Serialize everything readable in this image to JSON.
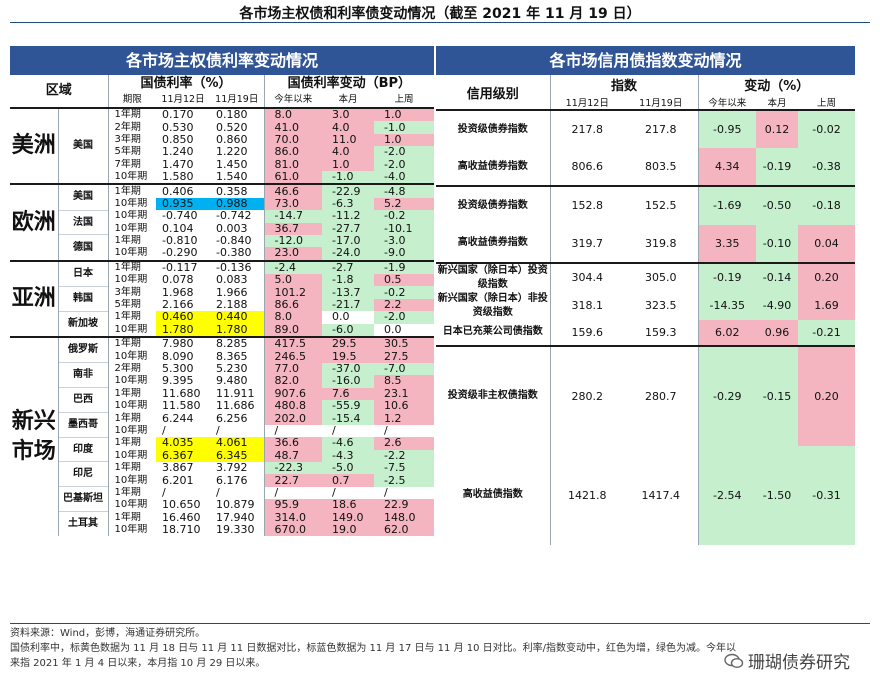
{
  "title": "各市场主权债和利率债变动情况（截至 2021 年 11 月 19 日）",
  "left": {
    "banner": "各市场主权债利率变动情况",
    "h_region": "区域",
    "h_yield": "国债利率（%）",
    "h_change": "国债利率变动（BP）",
    "h_period": "期限",
    "h_d1": "11月12日",
    "h_d2": "11月19日",
    "h_ytd": "今年以来",
    "h_mtd": "本月",
    "h_wtd": "上周",
    "rows": [
      {
        "p": "1年期",
        "a": "0.170",
        "b": "0.180",
        "y": "8.0",
        "m": "3.0",
        "w": "1.0"
      },
      {
        "p": "2年期",
        "a": "0.530",
        "b": "0.520",
        "y": "41.0",
        "m": "4.0",
        "w": "-1.0"
      },
      {
        "p": "3年期",
        "a": "0.850",
        "b": "0.860",
        "y": "70.0",
        "m": "11.0",
        "w": "1.0"
      },
      {
        "p": "5年期",
        "a": "1.240",
        "b": "1.220",
        "y": "86.0",
        "m": "4.0",
        "w": "-2.0"
      },
      {
        "p": "7年期",
        "a": "1.470",
        "b": "1.450",
        "y": "81.0",
        "m": "1.0",
        "w": "-2.0"
      },
      {
        "p": "10年期",
        "a": "1.580",
        "b": "1.540",
        "y": "61.0",
        "m": "-1.0",
        "w": "-4.0"
      },
      {
        "p": "1年期",
        "a": "0.406",
        "b": "0.358",
        "y": "46.6",
        "m": "-22.9",
        "w": "-4.8"
      },
      {
        "p": "10年期",
        "a": "0.935",
        "b": "0.988",
        "y": "73.0",
        "m": "-6.3",
        "w": "5.2"
      },
      {
        "p": "10年期",
        "a": "-0.740",
        "b": "-0.742",
        "y": "-14.7",
        "m": "-11.2",
        "w": "-0.2"
      },
      {
        "p": "10年期",
        "a": "0.104",
        "b": "0.003",
        "y": "36.7",
        "m": "-27.7",
        "w": "-10.1"
      },
      {
        "p": "1年期",
        "a": "-0.810",
        "b": "-0.840",
        "y": "-12.0",
        "m": "-17.0",
        "w": "-3.0"
      },
      {
        "p": "10年期",
        "a": "-0.290",
        "b": "-0.380",
        "y": "23.0",
        "m": "-24.0",
        "w": "-9.0"
      },
      {
        "p": "1年期",
        "a": "-0.117",
        "b": "-0.136",
        "y": "-2.4",
        "m": "-2.7",
        "w": "-1.9"
      },
      {
        "p": "10年期",
        "a": "0.078",
        "b": "0.083",
        "y": "5.0",
        "m": "-1.8",
        "w": "0.5"
      },
      {
        "p": "3年期",
        "a": "1.968",
        "b": "1.966",
        "y": "101.2",
        "m": "-13.7",
        "w": "-0.2"
      },
      {
        "p": "5年期",
        "a": "2.166",
        "b": "2.188",
        "y": "86.6",
        "m": "-21.7",
        "w": "2.2"
      },
      {
        "p": "1年期",
        "a": "0.460",
        "b": "0.440",
        "y": "8.0",
        "m": "0.0",
        "w": "-2.0"
      },
      {
        "p": "10年期",
        "a": "1.780",
        "b": "1.780",
        "y": "89.0",
        "m": "-6.0",
        "w": "0.0"
      },
      {
        "p": "1年期",
        "a": "7.980",
        "b": "8.285",
        "y": "417.5",
        "m": "29.5",
        "w": "30.5"
      },
      {
        "p": "10年期",
        "a": "8.090",
        "b": "8.365",
        "y": "246.5",
        "m": "19.5",
        "w": "27.5"
      },
      {
        "p": "2年期",
        "a": "5.300",
        "b": "5.230",
        "y": "77.0",
        "m": "-37.0",
        "w": "-7.0"
      },
      {
        "p": "10年期",
        "a": "9.395",
        "b": "9.480",
        "y": "82.0",
        "m": "-16.0",
        "w": "8.5"
      },
      {
        "p": "1年期",
        "a": "11.680",
        "b": "11.911",
        "y": "907.6",
        "m": "7.6",
        "w": "23.1"
      },
      {
        "p": "10年期",
        "a": "11.580",
        "b": "11.686",
        "y": "480.8",
        "m": "-55.9",
        "w": "10.6"
      },
      {
        "p": "1年期",
        "a": "6.244",
        "b": "6.256",
        "y": "202.0",
        "m": "-15.4",
        "w": "1.2"
      },
      {
        "p": "10年期",
        "a": "/",
        "b": "/",
        "y": "/",
        "m": "/",
        "w": "/"
      },
      {
        "p": "1年期",
        "a": "4.035",
        "b": "4.061",
        "y": "36.6",
        "m": "-4.6",
        "w": "2.6"
      },
      {
        "p": "10年期",
        "a": "6.367",
        "b": "6.345",
        "y": "48.7",
        "m": "-4.3",
        "w": "-2.2"
      },
      {
        "p": "1年期",
        "a": "3.867",
        "b": "3.792",
        "y": "-22.3",
        "m": "-5.0",
        "w": "-7.5"
      },
      {
        "p": "10年期",
        "a": "6.201",
        "b": "6.176",
        "y": "22.7",
        "m": "0.7",
        "w": "-2.5"
      },
      {
        "p": "1年期",
        "a": "/",
        "b": "/",
        "y": "/",
        "m": "/",
        "w": "/"
      },
      {
        "p": "10年期",
        "a": "10.650",
        "b": "10.879",
        "y": "95.9",
        "m": "18.6",
        "w": "22.9"
      },
      {
        "p": "1年期",
        "a": "16.460",
        "b": "17.940",
        "y": "314.0",
        "m": "149.0",
        "w": "148.0"
      },
      {
        "p": "10年期",
        "a": "18.710",
        "b": "19.330",
        "y": "670.0",
        "m": "19.0",
        "w": "62.0"
      }
    ],
    "regions": {
      "us": "美洲",
      "eu": "欧洲",
      "asia": "亚洲",
      "em": "新兴市场"
    },
    "countries": {
      "us": "美国",
      "eu_us": "美国",
      "fr": "法国",
      "de": "德国",
      "jp": "日本",
      "kr": "韩国",
      "sg": "新加坡",
      "ru": "俄罗斯",
      "za": "南非",
      "br": "巴西",
      "mx": "墨西哥",
      "in": "印度",
      "id": "印尼",
      "pk": "巴基斯坦",
      "tr": "土耳其"
    }
  },
  "right": {
    "banner": "各市场信用债指数变动情况",
    "h_rating": "信用级别",
    "h_index": "指数",
    "h_change": "变动（%）",
    "h_d1": "11月12日",
    "h_d2": "11月19日",
    "h_ytd": "今年以来",
    "h_mtd": "本月",
    "h_wtd": "上周",
    "rows": [
      {
        "r": "投资级债券指数",
        "a": "217.8",
        "b": "217.8",
        "y": "-0.95",
        "m": "0.12",
        "w": "-0.02"
      },
      {
        "r": "高收益债券指数",
        "a": "806.6",
        "b": "803.5",
        "y": "4.34",
        "m": "-0.19",
        "w": "-0.38"
      },
      {
        "r": "投资级债券指数",
        "a": "152.8",
        "b": "152.5",
        "y": "-1.69",
        "m": "-0.50",
        "w": "-0.18"
      },
      {
        "r": "高收益债券指数",
        "a": "319.7",
        "b": "319.8",
        "y": "3.35",
        "m": "-0.10",
        "w": "0.04"
      },
      {
        "r": "新兴国家（除日本）投资级指数",
        "a": "304.4",
        "b": "305.0",
        "y": "-0.19",
        "m": "-0.14",
        "w": "0.20"
      },
      {
        "r": "新兴国家（除日本）非投资级指数",
        "a": "318.1",
        "b": "323.5",
        "y": "-14.35",
        "m": "-4.90",
        "w": "1.69"
      },
      {
        "r": "日本已充莱公司债指数",
        "a": "159.6",
        "b": "159.3",
        "y": "6.02",
        "m": "0.96",
        "w": "-0.21"
      },
      {
        "r": "投资级非主权债指数",
        "a": "280.2",
        "b": "280.7",
        "y": "-0.29",
        "m": "-0.15",
        "w": "0.20"
      },
      {
        "r": "高收益债指数",
        "a": "1421.8",
        "b": "1417.4",
        "y": "-2.54",
        "m": "-1.50",
        "w": "-0.31"
      }
    ]
  },
  "footer": {
    "line1": "资料来源：Wind，彭博，海通证券研究所。",
    "line2": "国债利率中，标黄色数据为 11 月 18 日与 11 月 11 日数据对比，标蓝色数据为 11 月 17 日与 11 月 10 日对比。利率/指数变动中，红色为增，绿色为减。今年以",
    "line3": "来指 2021 年 1 月 4 日以来，本月指 10 月 29 日以来。",
    "watermark": "珊瑚债券研究"
  },
  "colors": {
    "banner": "#2f5597",
    "pos": "#f4b5c0",
    "neg": "#c6efce",
    "yellow": "#ffff00",
    "blue": "#00b0f0"
  }
}
